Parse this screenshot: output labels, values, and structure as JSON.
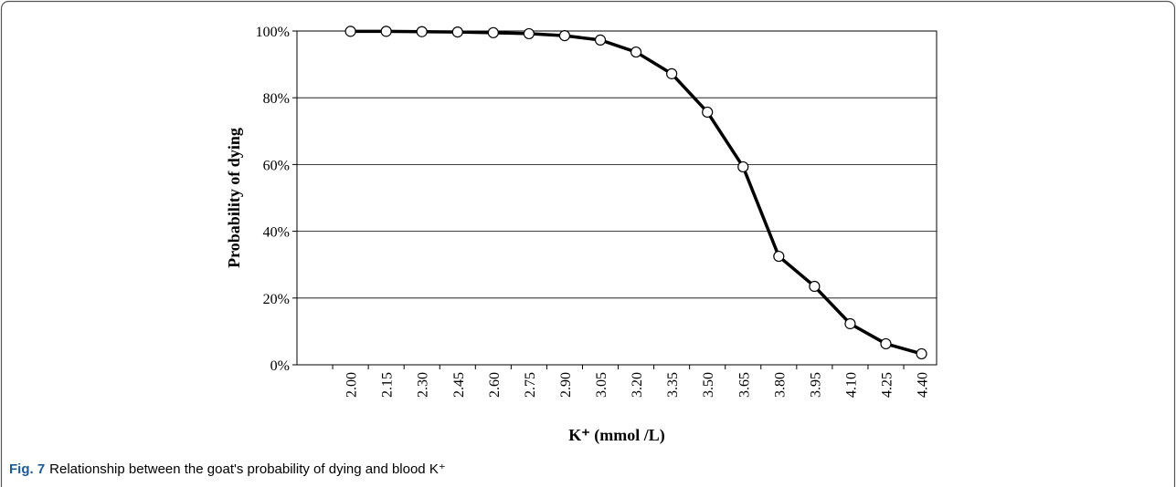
{
  "chart_data": {
    "type": "line",
    "y_label": "Probability of dying",
    "x_label": "K⁺ (mmol /L)",
    "caption_label": "Fig. 7",
    "caption": "Relationship between the goat's probability of dying and blood K⁺",
    "categories": [
      "2.00",
      "2.15",
      "2.30",
      "2.45",
      "2.60",
      "2.75",
      "2.90",
      "3.05",
      "3.20",
      "3.35",
      "3.50",
      "3.65",
      "3.80",
      "3.95",
      "4.10",
      "4.25",
      "4.40"
    ],
    "values": [
      99.9,
      99.9,
      99.8,
      99.7,
      99.5,
      99.2,
      98.6,
      97.3,
      93.7,
      87.2,
      75.7,
      59.3,
      32.5,
      23.5,
      12.3,
      6.3,
      3.3
    ],
    "color": "#000000",
    "marker_fill": "#ffffff",
    "ylim": [
      0,
      100
    ],
    "yticks": [
      {
        "value": 0,
        "label": "0%"
      },
      {
        "value": 20,
        "label": "20%"
      },
      {
        "value": 40,
        "label": "40%"
      },
      {
        "value": 60,
        "label": "60%"
      },
      {
        "value": 80,
        "label": "80%"
      },
      {
        "value": 100,
        "label": "100%"
      }
    ],
    "grid": true
  }
}
